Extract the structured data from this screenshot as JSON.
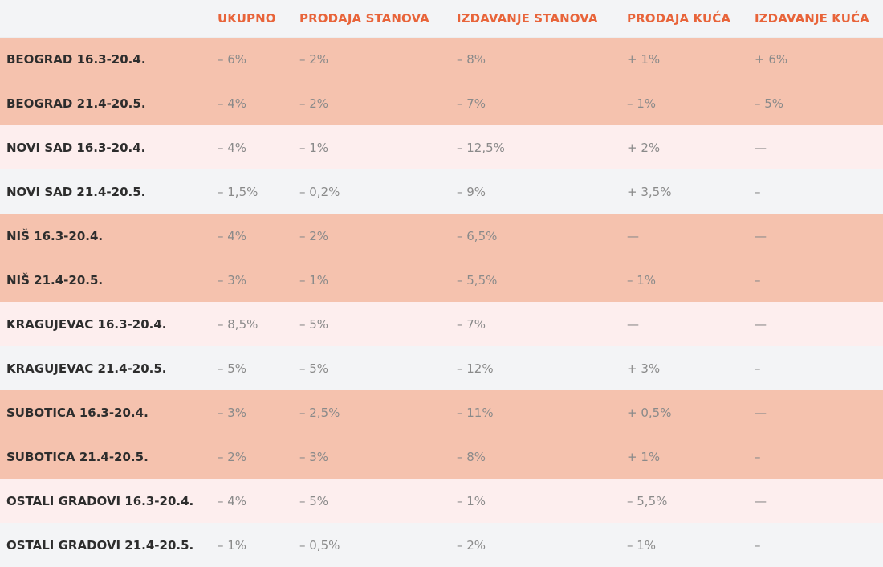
{
  "table": {
    "headers": [
      "",
      "UKUPNO",
      "PRODAJA STANOVA",
      "IZDAVANJE STANOVA",
      "PRODAJA KUĆA",
      "IZDAVANJE KUĆA"
    ],
    "colors": {
      "header_text": "#e8643a",
      "row_salmon": "#f5c2ae",
      "row_pink": "#fdeeee",
      "row_gray": "#f3f4f6",
      "label_text": "#2d2d2d",
      "value_text": "#8a8a8a"
    },
    "rows": [
      {
        "label": "BEOGRAD 16.3-20.4.",
        "ukupno": "– 6%",
        "prodaja_stanova": "– 2%",
        "izdavanje_stanova": "– 8%",
        "prodaja_kuca": "+ 1%",
        "izdavanje_kuca": "+ 6%"
      },
      {
        "label": "BEOGRAD 21.4-20.5.",
        "ukupno": "– 4%",
        "prodaja_stanova": "– 2%",
        "izdavanje_stanova": "– 7%",
        "prodaja_kuca": "– 1%",
        "izdavanje_kuca": "– 5%"
      },
      {
        "label": "NOVI SAD 16.3-20.4.",
        "ukupno": "– 4%",
        "prodaja_stanova": "– 1%",
        "izdavanje_stanova": "– 12,5%",
        "prodaja_kuca": "+ 2%",
        "izdavanje_kuca": "—"
      },
      {
        "label": "NOVI SAD 21.4-20.5.",
        "ukupno": "– 1,5%",
        "prodaja_stanova": "– 0,2%",
        "izdavanje_stanova": "– 9%",
        "prodaja_kuca": "+ 3,5%",
        "izdavanje_kuca": "–"
      },
      {
        "label": "NIŠ 16.3-20.4.",
        "ukupno": "– 4%",
        "prodaja_stanova": "– 2%",
        "izdavanje_stanova": "– 6,5%",
        "prodaja_kuca": "—",
        "izdavanje_kuca": "—"
      },
      {
        "label": "NIŠ 21.4-20.5.",
        "ukupno": "– 3%",
        "prodaja_stanova": "– 1%",
        "izdavanje_stanova": "– 5,5%",
        "prodaja_kuca": "– 1%",
        "izdavanje_kuca": "–"
      },
      {
        "label": "KRAGUJEVAC 16.3-20.4.",
        "ukupno": "– 8,5%",
        "prodaja_stanova": "– 5%",
        "izdavanje_stanova": "– 7%",
        "prodaja_kuca": "—",
        "izdavanje_kuca": "—"
      },
      {
        "label": "KRAGUJEVAC 21.4-20.5.",
        "ukupno": "– 5%",
        "prodaja_stanova": "– 5%",
        "izdavanje_stanova": "– 12%",
        "prodaja_kuca": "+ 3%",
        "izdavanje_kuca": "–"
      },
      {
        "label": "SUBOTICA 16.3-20.4.",
        "ukupno": "– 3%",
        "prodaja_stanova": "– 2,5%",
        "izdavanje_stanova": "– 11%",
        "prodaja_kuca": "+ 0,5%",
        "izdavanje_kuca": "—"
      },
      {
        "label": "SUBOTICA 21.4-20.5.",
        "ukupno": "– 2%",
        "prodaja_stanova": "– 3%",
        "izdavanje_stanova": "– 8%",
        "prodaja_kuca": "+ 1%",
        "izdavanje_kuca": "–"
      },
      {
        "label": "OSTALI GRADOVI 16.3-20.4.",
        "ukupno": "– 4%",
        "prodaja_stanova": "– 5%",
        "izdavanje_stanova": "– 1%",
        "prodaja_kuca": "– 5,5%",
        "izdavanje_kuca": "—"
      },
      {
        "label": "OSTALI GRADOVI 21.4-20.5.",
        "ukupno": "– 1%",
        "prodaja_stanova": "– 0,5%",
        "izdavanje_stanova": "– 2%",
        "prodaja_kuca": "– 1%",
        "izdavanje_kuca": "–"
      }
    ]
  }
}
